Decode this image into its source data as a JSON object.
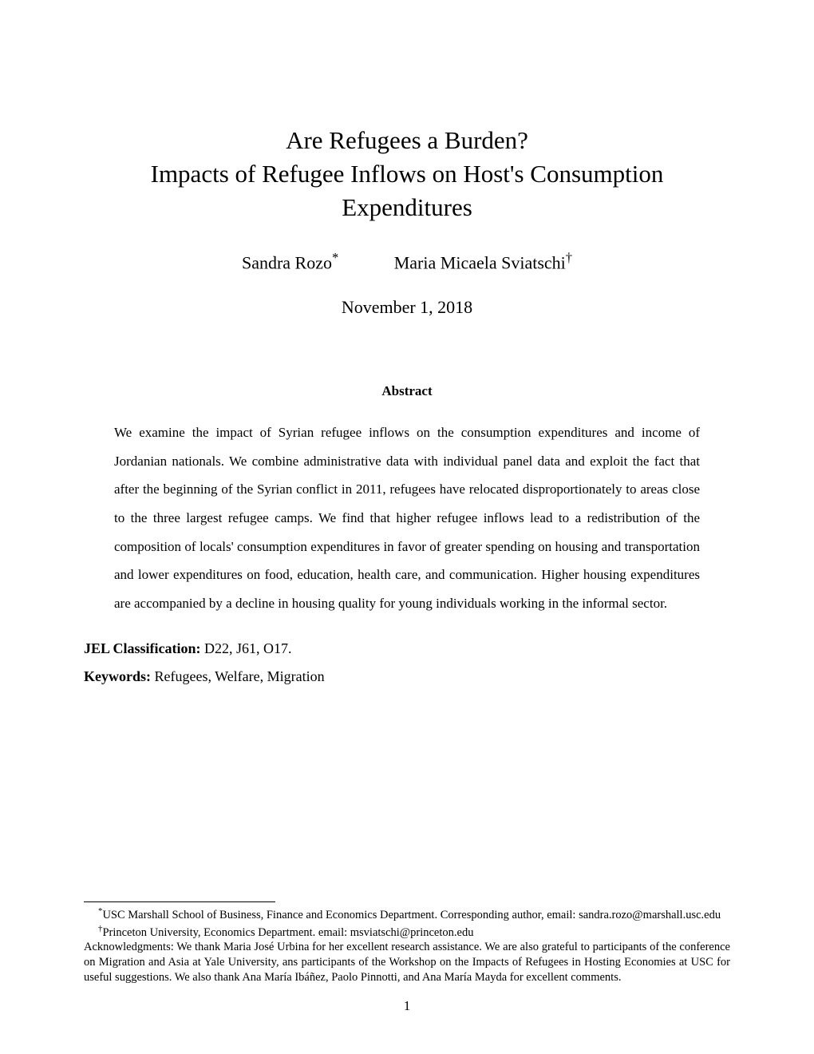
{
  "title": {
    "line1": "Are Refugees a Burden?",
    "line2": "Impacts of Refugee Inflows on Host's Consumption",
    "line3": "Expenditures",
    "fontsize_pt": 24
  },
  "authors": [
    {
      "name": "Sandra Rozo",
      "marker": "*"
    },
    {
      "name": "Maria Micaela Sviatschi",
      "marker": "†"
    }
  ],
  "date": "November 1, 2018",
  "abstract": {
    "heading": "Abstract",
    "body": "We examine the impact of Syrian refugee inflows on the consumption expenditures and income of Jordanian nationals. We combine administrative data with individual panel data and exploit the fact that after the beginning of the Syrian conflict in 2011, refugees have relocated disproportionately to areas close to the three largest refugee camps. We find that higher refugee inflows lead to a redistribution of the composition of locals' consumption expenditures in favor of greater spending on housing and transportation and lower expenditures on food, education, health care, and communication. Higher housing expenditures are accompanied by a decline in housing quality for young individuals working in the informal sector."
  },
  "jel": {
    "label": "JEL Classification:",
    "value": " D22, J61, O17."
  },
  "keywords": {
    "label": "Keywords:",
    "value": " Refugees, Welfare, Migration"
  },
  "footnotes": {
    "aff1": {
      "marker": "*",
      "text": "USC Marshall School of Business, Finance and Economics Department. Corresponding author, email: sandra.rozo@marshall.usc.edu"
    },
    "aff2": {
      "marker": "†",
      "text": "Princeton University, Economics Department. email: msviatschi@princeton.edu"
    },
    "ack": "Acknowledgments: We thank Maria José Urbina for her excellent research assistance. We are also grateful to participants of the conference on Migration and Asia at Yale University, ans participants of the Workshop on the Impacts of Refugees in Hosting Economies at USC for useful suggestions. We also thank Ana María Ibáñez, Paolo Pinnotti, and Ana María Mayda for excellent comments."
  },
  "page_number": "1",
  "colors": {
    "text": "#000000",
    "background": "#ffffff"
  },
  "typography": {
    "body_font": "Times New Roman",
    "title_fontsize_pt": 24,
    "author_fontsize_pt": 16,
    "abstract_fontsize_pt": 12,
    "footnote_fontsize_pt": 10
  }
}
